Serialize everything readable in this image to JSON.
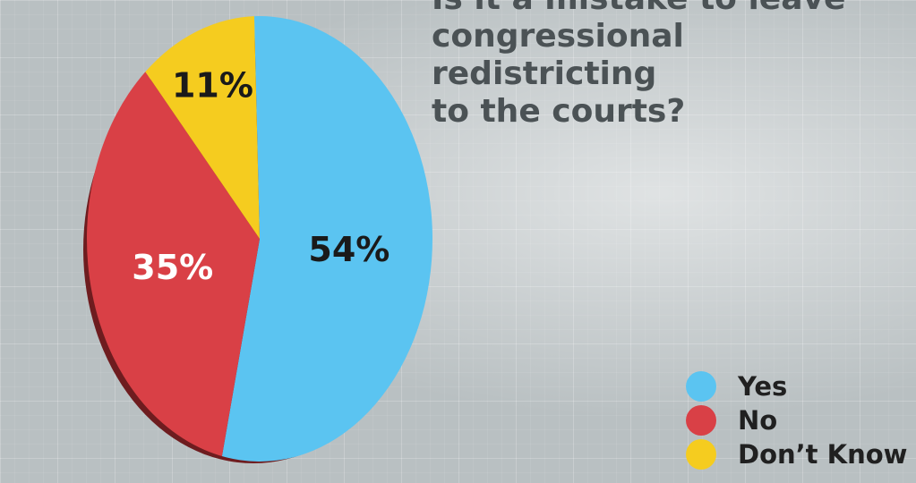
{
  "question": "Is it a mistake to leave\ncongressional redistricting\nto the courts?",
  "chart_data": {
    "type": "pie",
    "title": "Is it a mistake to leave congressional redistricting to the courts?",
    "slices": [
      {
        "label": "Yes",
        "value": 54,
        "display": "54%",
        "color": "#5bc4f1",
        "label_color": "#1a1a1a"
      },
      {
        "label": "No",
        "value": 35,
        "display": "35%",
        "color": "#d94046",
        "label_color": "#ffffff"
      },
      {
        "label": "Don’t Know",
        "value": 11,
        "display": "11%",
        "color": "#f5cc1f",
        "label_color": "#1a1a1a"
      }
    ],
    "legend_position": "bottom-right"
  }
}
